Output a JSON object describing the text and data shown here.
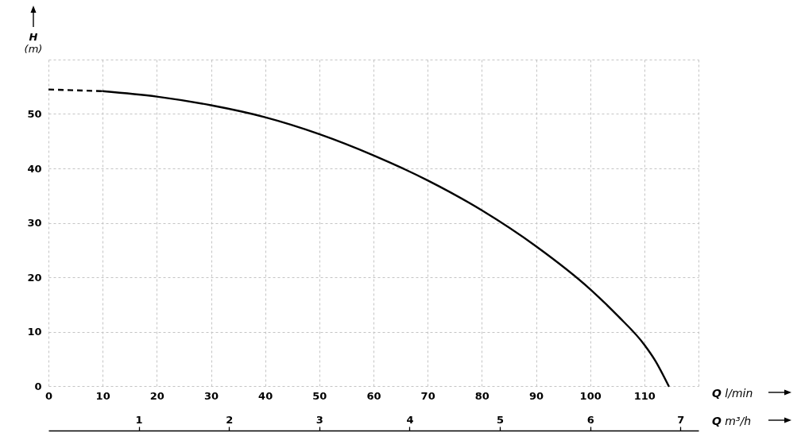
{
  "chart_data": {
    "type": "line",
    "xlabel": "Q l/min",
    "x2label": "Q m³/h",
    "ylabel": "H (m)",
    "xlim": [
      0,
      120
    ],
    "xticks": [
      0,
      10,
      20,
      30,
      40,
      50,
      60,
      70,
      80,
      90,
      100,
      110,
      {
        "value": 120,
        "label": null
      }
    ],
    "ylim": [
      0,
      60
    ],
    "yticks": [
      0,
      10,
      20,
      30,
      40,
      50,
      {
        "value": 60,
        "label": null
      }
    ],
    "x2lim": [
      0,
      7.2
    ],
    "x2ticks": [
      1,
      2,
      3,
      4,
      5,
      6,
      7
    ],
    "grid": true,
    "series": [
      {
        "color": "#000000",
        "line_style": "dashed",
        "x": [
          0,
          10
        ],
        "values": [
          54.5,
          54.2
        ]
      },
      {
        "color": "#000000",
        "line_style": "solid",
        "x": [
          10,
          20,
          30,
          40,
          50,
          60,
          70,
          80,
          90,
          100,
          105,
          110,
          112,
          114.5
        ],
        "values": [
          54.2,
          53.2,
          51.6,
          49.4,
          46.3,
          42.4,
          37.8,
          32.3,
          25.7,
          17.8,
          13,
          7.6,
          4.7,
          0
        ]
      }
    ]
  }
}
